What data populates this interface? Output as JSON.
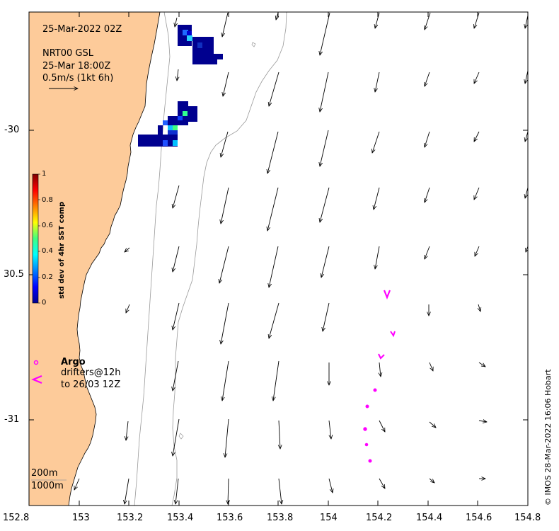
{
  "map": {
    "date_label": "25-Mar-2022 02Z",
    "model_label": "NRT00 GSL",
    "valid_label": "25-Mar 18:00Z",
    "scale_label": "0.5m/s (1kt 6h)",
    "credit": "© IMOS 28-Mar-2022 16:06 Hobart",
    "colors": {
      "land": "#FDCB9A",
      "ocean": "#ffffff",
      "argo": "#FF00FF",
      "isobath": "#999999"
    },
    "x_axis": {
      "range": [
        152.8,
        154.8
      ],
      "ticks": [
        "152.8",
        "153",
        "153.2",
        "153.4",
        "153.6",
        "153.8",
        "154",
        "154.2",
        "154.4",
        "154.6",
        "154.8"
      ]
    },
    "y_axis": {
      "range": [
        -31.3,
        -29.6
      ],
      "ticks": [
        "-30",
        "30.5",
        "-31"
      ]
    },
    "colorbar": {
      "title": "std dev of 4hr SST comp",
      "ticks": [
        "1",
        "0.8",
        "0.6",
        "0.4",
        "0.2",
        "0"
      ],
      "colormap": "jet"
    },
    "legend": {
      "argo_label": "Argo",
      "drifters_line1": "drifters@12h",
      "drifters_line2": "to 26/03 12Z"
    },
    "isobaths": [
      "200m",
      "1000m"
    ]
  }
}
